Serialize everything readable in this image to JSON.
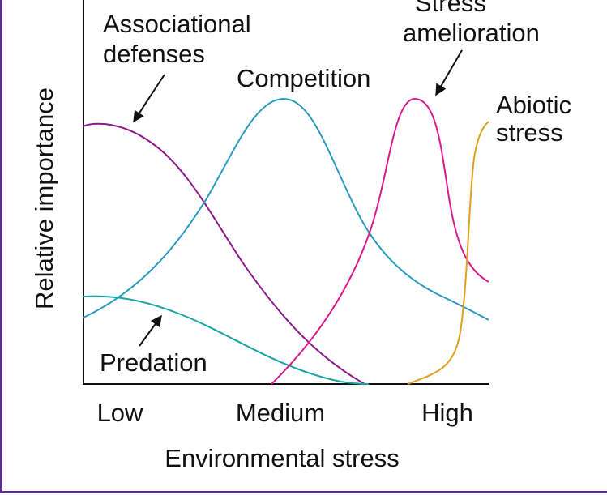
{
  "diagram": {
    "y_axis_label": "Relative importance",
    "x_axis_label": "Environmental stress",
    "x_categories": [
      "Low",
      "Medium",
      "High"
    ],
    "curves": [
      {
        "label_lines": [
          "Associational",
          "defenses"
        ]
      },
      {
        "label_lines": [
          "Competition"
        ]
      },
      {
        "label_lines": [
          "Stress",
          "amelioration"
        ]
      },
      {
        "label_lines": [
          "Abiotic",
          "stress"
        ]
      },
      {
        "label_lines": [
          "Predation"
        ]
      }
    ]
  }
}
